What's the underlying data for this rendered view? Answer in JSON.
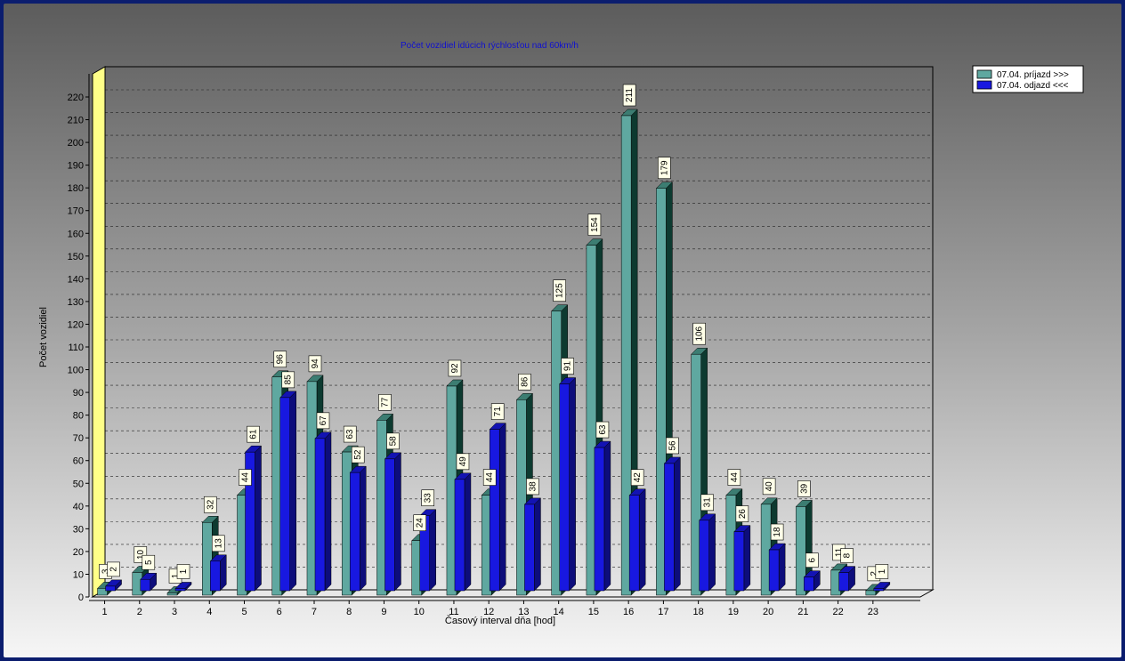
{
  "chart_data": {
    "type": "bar",
    "title": "Počet vozidiel idúcich rýchlosťou nad 60km/h",
    "xlabel": "Časový interval dňa [hod]",
    "ylabel": "Počet vozidiel",
    "ylim": [
      0,
      220
    ],
    "yticks": [
      0,
      10,
      20,
      30,
      40,
      50,
      60,
      70,
      80,
      90,
      100,
      110,
      120,
      130,
      140,
      150,
      160,
      170,
      180,
      190,
      200,
      210,
      220
    ],
    "categories": [
      "1",
      "2",
      "3",
      "4",
      "5",
      "6",
      "7",
      "8",
      "9",
      "10",
      "11",
      "12",
      "13",
      "14",
      "15",
      "16",
      "17",
      "18",
      "19",
      "20",
      "21",
      "22",
      "23"
    ],
    "series": [
      {
        "name": "07.04.  príjazd >>>",
        "color": "#5fa8a0",
        "values": [
          3,
          10,
          1,
          32,
          44,
          96,
          94,
          63,
          77,
          24,
          92,
          44,
          86,
          125,
          154,
          211,
          179,
          106,
          44,
          40,
          39,
          11,
          2
        ]
      },
      {
        "name": "07.04.  odjazd <<<",
        "color": "#1818e0",
        "values": [
          2,
          5,
          1,
          13,
          61,
          85,
          67,
          52,
          58,
          33,
          49,
          71,
          38,
          91,
          63,
          42,
          56,
          31,
          26,
          18,
          6,
          8,
          1
        ]
      }
    ],
    "grid": true,
    "legend_position": "top-right",
    "colors": {
      "wall_left": "#ffff88",
      "axis": "#000000"
    }
  }
}
